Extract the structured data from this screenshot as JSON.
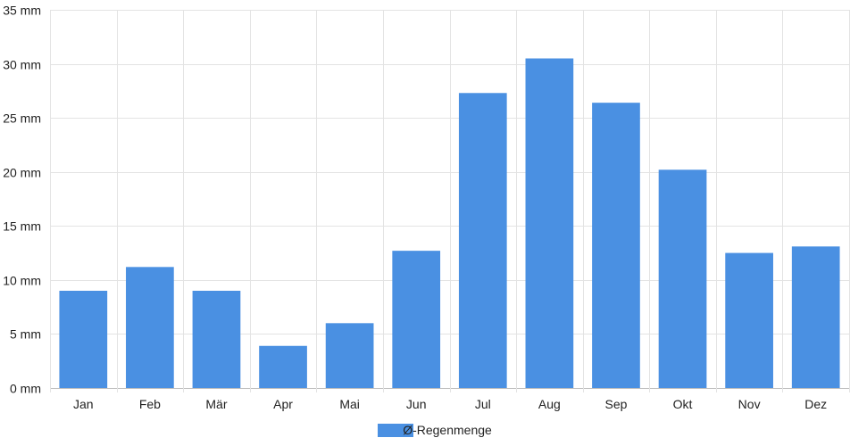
{
  "chart_data": {
    "type": "bar",
    "categories": [
      "Jan",
      "Feb",
      "Mär",
      "Apr",
      "Mai",
      "Jun",
      "Jul",
      "Aug",
      "Sep",
      "Okt",
      "Nov",
      "Dez"
    ],
    "series": [
      {
        "name": "Ø-Regenmenge",
        "values": [
          9.0,
          11.2,
          9.0,
          3.9,
          6.0,
          12.7,
          27.3,
          30.5,
          26.4,
          20.2,
          12.5,
          13.1
        ],
        "color": "#4a90e2"
      }
    ],
    "y_unit": "mm",
    "y_ticks": [
      0,
      5,
      10,
      15,
      20,
      25,
      30,
      35
    ],
    "ylim": [
      0,
      35
    ],
    "grid": true,
    "legend_position": "bottom-center"
  },
  "legend": {
    "label": "Ø-Regenmenge",
    "color": "#4a90e2"
  }
}
